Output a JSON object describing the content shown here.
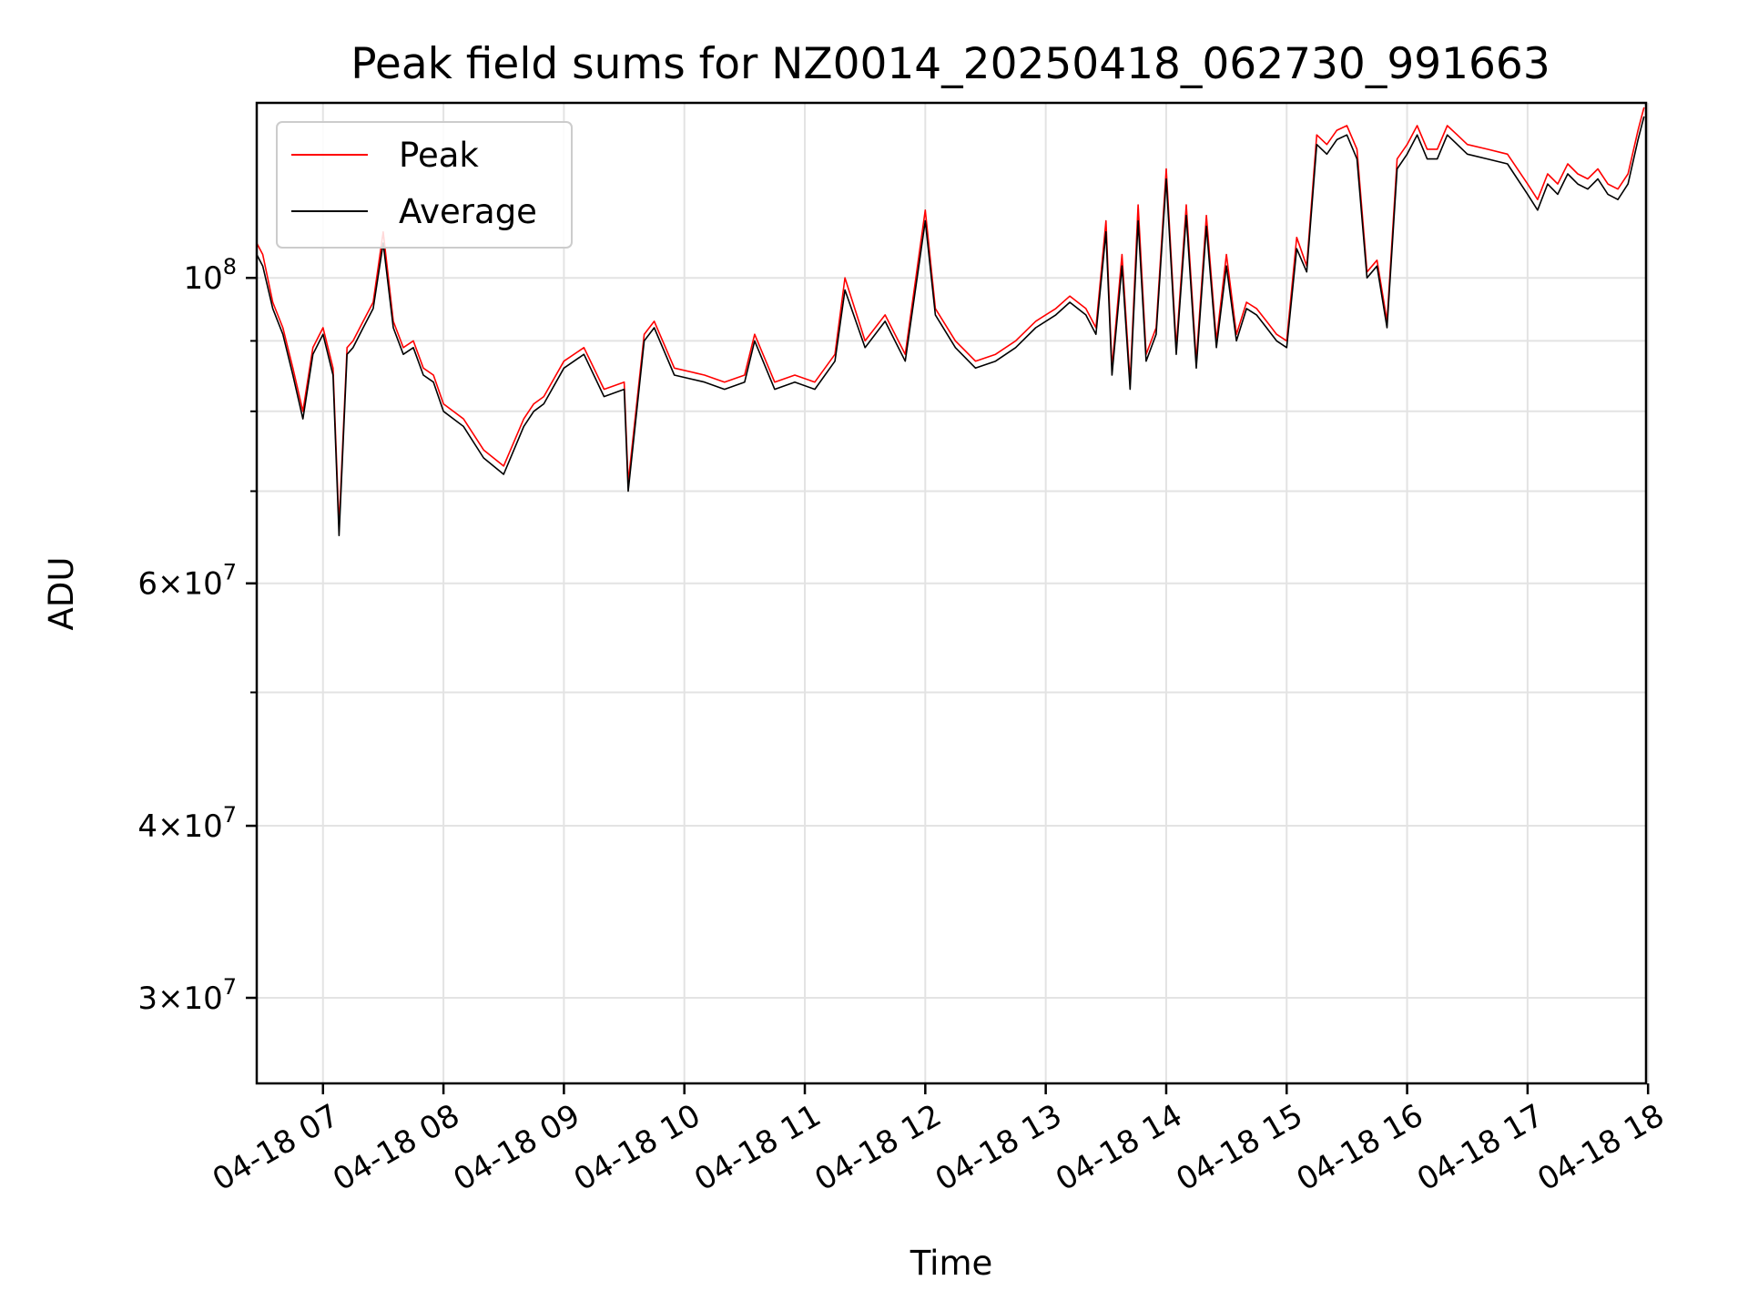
{
  "chart_data": {
    "type": "line",
    "title": "Peak field sums for NZ0014_20250418_062730_991663",
    "xlabel": "Time",
    "ylabel": "ADU",
    "yscale": "log",
    "grid": true,
    "legend_placement": "top-left",
    "xlim": [
      "2025-04-18 06:27",
      "2025-04-18 17:59"
    ],
    "ylim": [
      26000000,
      134000000
    ],
    "x_ticks": [
      {
        "value": "2025-04-18 07:00",
        "label": "04-18 07"
      },
      {
        "value": "2025-04-18 08:00",
        "label": "04-18 08"
      },
      {
        "value": "2025-04-18 09:00",
        "label": "04-18 09"
      },
      {
        "value": "2025-04-18 10:00",
        "label": "04-18 10"
      },
      {
        "value": "2025-04-18 11:00",
        "label": "04-18 11"
      },
      {
        "value": "2025-04-18 12:00",
        "label": "04-18 12"
      },
      {
        "value": "2025-04-18 13:00",
        "label": "04-18 13"
      },
      {
        "value": "2025-04-18 14:00",
        "label": "04-18 14"
      },
      {
        "value": "2025-04-18 15:00",
        "label": "04-18 15"
      },
      {
        "value": "2025-04-18 16:00",
        "label": "04-18 16"
      },
      {
        "value": "2025-04-18 17:00",
        "label": "04-18 17"
      },
      {
        "value": "2025-04-18 18:00",
        "label": "04-18 18"
      }
    ],
    "y_ticks": [
      {
        "value": 30000000,
        "label_mant": "3",
        "label_exp": "7"
      },
      {
        "value": 40000000,
        "label_mant": "4",
        "label_exp": "7"
      },
      {
        "value": 60000000,
        "label_mant": "6",
        "label_exp": "7"
      },
      {
        "value": 100000000,
        "label_mant": "",
        "label_exp": "8"
      }
    ],
    "y_minor_ticks": [
      50000000,
      70000000,
      80000000,
      90000000
    ],
    "x": [
      "2025-04-18 06:27",
      "2025-04-18 06:30",
      "2025-04-18 06:35",
      "2025-04-18 06:40",
      "2025-04-18 06:45",
      "2025-04-18 06:50",
      "2025-04-18 06:55",
      "2025-04-18 07:00",
      "2025-04-18 07:05",
      "2025-04-18 07:08",
      "2025-04-18 07:12",
      "2025-04-18 07:15",
      "2025-04-18 07:20",
      "2025-04-18 07:25",
      "2025-04-18 07:30",
      "2025-04-18 07:35",
      "2025-04-18 07:40",
      "2025-04-18 07:45",
      "2025-04-18 07:50",
      "2025-04-18 07:55",
      "2025-04-18 08:00",
      "2025-04-18 08:10",
      "2025-04-18 08:20",
      "2025-04-18 08:30",
      "2025-04-18 08:40",
      "2025-04-18 08:45",
      "2025-04-18 08:50",
      "2025-04-18 09:00",
      "2025-04-18 09:10",
      "2025-04-18 09:20",
      "2025-04-18 09:30",
      "2025-04-18 09:32",
      "2025-04-18 09:40",
      "2025-04-18 09:45",
      "2025-04-18 09:55",
      "2025-04-18 10:10",
      "2025-04-18 10:20",
      "2025-04-18 10:30",
      "2025-04-18 10:35",
      "2025-04-18 10:45",
      "2025-04-18 10:55",
      "2025-04-18 11:05",
      "2025-04-18 11:15",
      "2025-04-18 11:20",
      "2025-04-18 11:30",
      "2025-04-18 11:40",
      "2025-04-18 11:50",
      "2025-04-18 12:00",
      "2025-04-18 12:05",
      "2025-04-18 12:15",
      "2025-04-18 12:25",
      "2025-04-18 12:35",
      "2025-04-18 12:45",
      "2025-04-18 12:55",
      "2025-04-18 13:05",
      "2025-04-18 13:12",
      "2025-04-18 13:20",
      "2025-04-18 13:25",
      "2025-04-18 13:30",
      "2025-04-18 13:33",
      "2025-04-18 13:38",
      "2025-04-18 13:42",
      "2025-04-18 13:46",
      "2025-04-18 13:50",
      "2025-04-18 13:55",
      "2025-04-18 14:00",
      "2025-04-18 14:05",
      "2025-04-18 14:10",
      "2025-04-18 14:15",
      "2025-04-18 14:20",
      "2025-04-18 14:25",
      "2025-04-18 14:30",
      "2025-04-18 14:35",
      "2025-04-18 14:40",
      "2025-04-18 14:45",
      "2025-04-18 14:50",
      "2025-04-18 14:55",
      "2025-04-18 15:00",
      "2025-04-18 15:05",
      "2025-04-18 15:10",
      "2025-04-18 15:15",
      "2025-04-18 15:20",
      "2025-04-18 15:25",
      "2025-04-18 15:30",
      "2025-04-18 15:35",
      "2025-04-18 15:40",
      "2025-04-18 15:45",
      "2025-04-18 15:50",
      "2025-04-18 15:55",
      "2025-04-18 16:00",
      "2025-04-18 16:05",
      "2025-04-18 16:10",
      "2025-04-18 16:15",
      "2025-04-18 16:20",
      "2025-04-18 16:25",
      "2025-04-18 16:30",
      "2025-04-18 16:40",
      "2025-04-18 16:50",
      "2025-04-18 17:00",
      "2025-04-18 17:05",
      "2025-04-18 17:10",
      "2025-04-18 17:15",
      "2025-04-18 17:20",
      "2025-04-18 17:25",
      "2025-04-18 17:30",
      "2025-04-18 17:35",
      "2025-04-18 17:40",
      "2025-04-18 17:45",
      "2025-04-18 17:50",
      "2025-04-18 17:55",
      "2025-04-18 17:58"
    ],
    "series": [
      {
        "name": "Peak",
        "color": "#ff0000",
        "values": [
          106000000,
          104000000,
          96000000,
          92000000,
          86000000,
          80000000,
          89000000,
          92000000,
          86000000,
          66000000,
          89000000,
          90000000,
          93000000,
          96000000,
          108000000,
          93000000,
          89000000,
          90000000,
          86000000,
          85000000,
          81000000,
          79000000,
          75000000,
          73000000,
          79000000,
          81000000,
          82000000,
          87000000,
          89000000,
          83000000,
          84000000,
          71000000,
          91000000,
          93000000,
          86000000,
          85000000,
          84000000,
          85000000,
          91000000,
          84000000,
          85000000,
          84000000,
          88000000,
          100000000,
          90000000,
          94000000,
          88000000,
          112000000,
          95000000,
          90000000,
          87000000,
          88000000,
          90000000,
          93000000,
          95000000,
          97000000,
          95000000,
          92000000,
          110000000,
          86000000,
          104000000,
          84000000,
          113000000,
          88000000,
          92000000,
          120000000,
          89000000,
          113000000,
          87000000,
          111000000,
          90000000,
          104000000,
          91000000,
          96000000,
          95000000,
          93000000,
          91000000,
          90000000,
          107000000,
          102000000,
          127000000,
          125000000,
          128000000,
          129000000,
          124000000,
          101000000,
          103000000,
          93000000,
          122000000,
          125000000,
          129000000,
          124000000,
          124000000,
          129000000,
          127000000,
          125000000,
          124000000,
          123000000,
          117000000,
          114000000,
          119000000,
          117000000,
          121000000,
          119000000,
          118000000,
          120000000,
          117000000,
          116000000,
          119000000,
          128000000,
          133000000
        ]
      },
      {
        "name": "Average",
        "color": "#000000",
        "values": [
          104000000,
          102000000,
          95000000,
          91000000,
          85000000,
          79000000,
          88000000,
          91000000,
          85000000,
          65000000,
          88000000,
          89000000,
          92000000,
          95000000,
          106000000,
          92000000,
          88000000,
          89000000,
          85000000,
          84000000,
          80000000,
          78000000,
          74000000,
          72000000,
          78000000,
          80000000,
          81000000,
          86000000,
          88000000,
          82000000,
          83000000,
          70000000,
          90000000,
          92000000,
          85000000,
          84000000,
          83000000,
          84000000,
          90000000,
          83000000,
          84000000,
          83000000,
          87000000,
          98000000,
          89000000,
          93000000,
          87000000,
          110000000,
          94000000,
          89000000,
          86000000,
          87000000,
          89000000,
          92000000,
          94000000,
          96000000,
          94000000,
          91000000,
          108000000,
          85000000,
          102000000,
          83000000,
          110000000,
          87000000,
          91000000,
          118000000,
          88000000,
          111000000,
          86000000,
          109000000,
          89000000,
          102000000,
          90000000,
          95000000,
          94000000,
          92000000,
          90000000,
          89000000,
          105000000,
          101000000,
          125000000,
          123000000,
          126000000,
          127000000,
          122000000,
          100000000,
          102000000,
          92000000,
          120000000,
          123000000,
          127000000,
          122000000,
          122000000,
          127000000,
          125000000,
          123000000,
          122000000,
          121000000,
          115000000,
          112000000,
          117000000,
          115000000,
          119000000,
          117000000,
          116000000,
          118000000,
          115000000,
          114000000,
          117000000,
          126000000,
          131000000
        ]
      }
    ]
  }
}
